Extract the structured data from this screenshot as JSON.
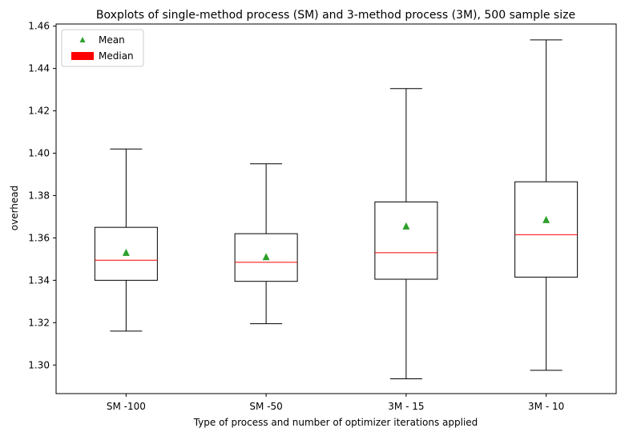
{
  "chart_data": {
    "type": "boxplot",
    "title": "Boxplots of single-method process (SM) and 3-method process (3M), 500 sample size",
    "xlabel": "Type of process and number of optimizer iterations applied",
    "ylabel": "overhead",
    "ylim": [
      1.2865,
      1.461
    ],
    "yticks": [
      1.3,
      1.32,
      1.34,
      1.36,
      1.38,
      1.4,
      1.42,
      1.44,
      1.46
    ],
    "ytick_labels": [
      "1.30",
      "1.32",
      "1.34",
      "1.36",
      "1.38",
      "1.40",
      "1.42",
      "1.44",
      "1.46"
    ],
    "grid": false,
    "legend": {
      "placement": "top-left",
      "entries": [
        {
          "label": "Mean",
          "marker": "triangle",
          "color": "#2ca02c"
        },
        {
          "label": "Median",
          "marker": "patch",
          "color": "#ff0000"
        }
      ]
    },
    "categories": [
      "SM -100",
      "SM -50",
      "3M - 15",
      "3M - 10"
    ],
    "boxes": [
      {
        "label": "SM -100",
        "whisker_low": 1.316,
        "q1": 1.34,
        "median": 1.3495,
        "q3": 1.365,
        "whisker_high": 1.402,
        "mean": 1.353
      },
      {
        "label": "SM -50",
        "whisker_low": 1.3195,
        "q1": 1.3395,
        "median": 1.3485,
        "q3": 1.362,
        "whisker_high": 1.395,
        "mean": 1.351
      },
      {
        "label": "3M - 15",
        "whisker_low": 1.2935,
        "q1": 1.3405,
        "median": 1.353,
        "q3": 1.377,
        "whisker_high": 1.4305,
        "mean": 1.3655
      },
      {
        "label": "3M - 10",
        "whisker_low": 1.2975,
        "q1": 1.3415,
        "median": 1.3615,
        "q3": 1.3865,
        "whisker_high": 1.4535,
        "mean": 1.3685
      }
    ],
    "colors": {
      "box": "#000000",
      "median": "#ff0000",
      "mean": "#2ca02c"
    }
  }
}
